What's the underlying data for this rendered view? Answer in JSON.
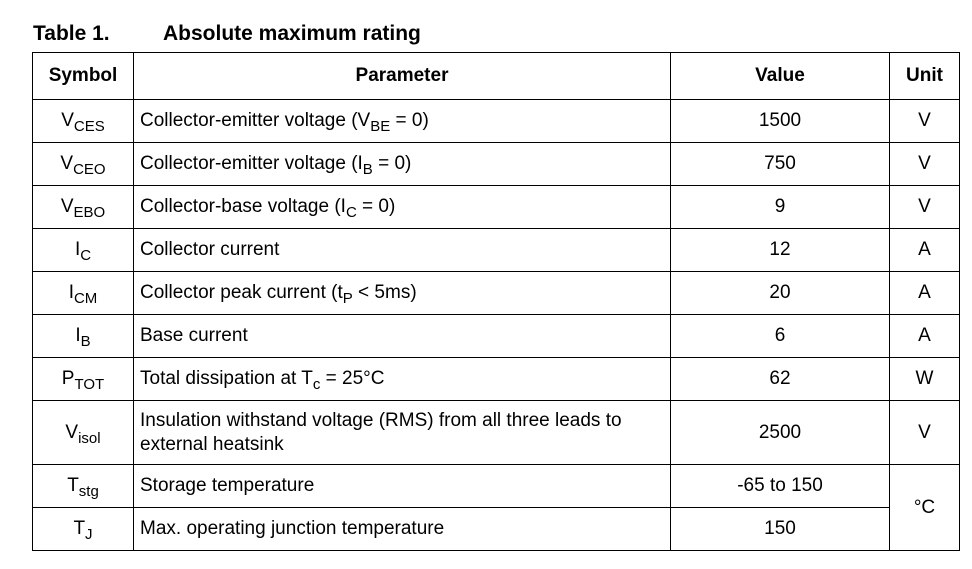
{
  "caption": {
    "number": "Table 1.",
    "title": "Absolute maximum rating"
  },
  "table": {
    "headers": [
      "Symbol",
      "Parameter",
      "Value",
      "Unit"
    ],
    "rows": [
      {
        "symbol": {
          "main": "V",
          "sub": "CES"
        },
        "parameter": [
          {
            "text": "Collector-emitter voltage (V"
          },
          {
            "sub": "BE"
          },
          {
            "text": " = 0)"
          }
        ],
        "value": 1500,
        "unit": "V"
      },
      {
        "symbol": {
          "main": "V",
          "sub": "CEO"
        },
        "parameter": [
          {
            "text": "Collector-emitter voltage (I"
          },
          {
            "sub": "B"
          },
          {
            "text": " = 0)"
          }
        ],
        "value": 750,
        "unit": "V"
      },
      {
        "symbol": {
          "main": "V",
          "sub": "EBO"
        },
        "parameter": [
          {
            "text": "Collector-base voltage (I"
          },
          {
            "sub": "C"
          },
          {
            "text": " = 0)"
          }
        ],
        "value": 9,
        "unit": "V"
      },
      {
        "symbol": {
          "main": "I",
          "sub": "C"
        },
        "parameter": [
          {
            "text": "Collector current"
          }
        ],
        "value": 12,
        "unit": "A"
      },
      {
        "symbol": {
          "main": "I",
          "sub": "CM"
        },
        "parameter": [
          {
            "text": "Collector peak current (t"
          },
          {
            "sub": "P"
          },
          {
            "text": " < 5ms)"
          }
        ],
        "value": 20,
        "unit": "A"
      },
      {
        "symbol": {
          "main": "I",
          "sub": "B"
        },
        "parameter": [
          {
            "text": "Base current"
          }
        ],
        "value": 6,
        "unit": "A"
      },
      {
        "symbol": {
          "main": "P",
          "sub": "TOT"
        },
        "parameter": [
          {
            "text": "Total dissipation at T"
          },
          {
            "sub": "c"
          },
          {
            "text": " = 25°C"
          }
        ],
        "value": 62,
        "unit": "W"
      },
      {
        "symbol": {
          "main": "V",
          "sub": "isol"
        },
        "parameter": [
          {
            "text": "Insulation withstand voltage (RMS) from all three leads to external heatsink"
          }
        ],
        "value": 2500,
        "unit": "V"
      },
      {
        "symbol": {
          "main": "T",
          "sub": "stg"
        },
        "parameter": [
          {
            "text": "Storage temperature"
          }
        ],
        "value": "-65 to 150",
        "unit": "°C"
      },
      {
        "symbol": {
          "main": "T",
          "sub": "J"
        },
        "parameter": [
          {
            "text": "Max. operating junction temperature"
          }
        ],
        "value": 150
      }
    ]
  }
}
